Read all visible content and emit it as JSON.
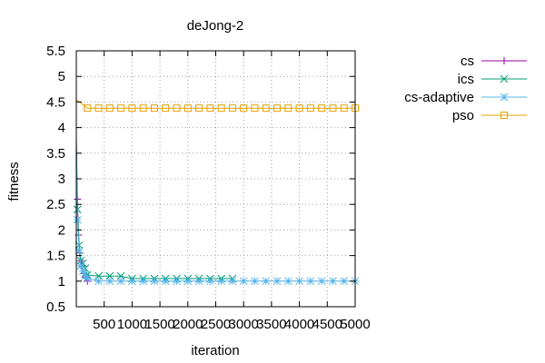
{
  "chart_data": {
    "type": "line",
    "title": "deJong-2",
    "xlabel": "iteration",
    "ylabel": "fitness",
    "xlim": [
      0,
      5000
    ],
    "ylim": [
      0.5,
      5.5
    ],
    "x_ticks": [
      500,
      1000,
      1500,
      2000,
      2500,
      3000,
      3500,
      4000,
      4500,
      5000
    ],
    "y_ticks": [
      0.5,
      1,
      1.5,
      2,
      2.5,
      3,
      3.5,
      4,
      4.5,
      5,
      5.5
    ],
    "x_tick_labels": [
      "500",
      "1000",
      "1500",
      "2000",
      "2500",
      "3000",
      "3500",
      "4000",
      "4500",
      "5000"
    ],
    "y_tick_labels": [
      "0.5",
      "1",
      "1.5",
      "2",
      "2.5",
      "3",
      "3.5",
      "4",
      "4.5",
      "5",
      "5.5"
    ],
    "grid": true,
    "legend_position": "outside-right-top",
    "series": [
      {
        "name": "cs",
        "color": "#94009e",
        "marker": "plus",
        "x": [
          0,
          20,
          40,
          60,
          80,
          100,
          130,
          160,
          200
        ],
        "y": [
          3.8,
          2.6,
          1.9,
          1.55,
          1.4,
          1.3,
          1.15,
          1.08,
          1.0
        ]
      },
      {
        "name": "ics",
        "color": "#009e73",
        "marker": "x",
        "x": [
          0,
          20,
          50,
          80,
          120,
          160,
          200,
          400,
          600,
          800,
          1000,
          1200,
          1400,
          1600,
          1800,
          2000,
          2200,
          2400,
          2600,
          2800
        ],
        "y": [
          3.7,
          2.4,
          1.7,
          1.4,
          1.35,
          1.25,
          1.12,
          1.1,
          1.1,
          1.1,
          1.05,
          1.05,
          1.05,
          1.05,
          1.05,
          1.05,
          1.05,
          1.05,
          1.05,
          1.05
        ]
      },
      {
        "name": "cs-adaptive",
        "color": "#56b4e9",
        "marker": "star",
        "x": [
          0,
          20,
          50,
          80,
          120,
          160,
          200,
          400,
          600,
          800,
          1000,
          1200,
          1400,
          1600,
          1800,
          2000,
          2200,
          2400,
          2600,
          2800,
          3000,
          3200,
          3400,
          3600,
          3800,
          4000,
          4200,
          4400,
          4600,
          4800,
          5000
        ],
        "y": [
          3.5,
          2.2,
          1.6,
          1.3,
          1.2,
          1.1,
          1.05,
          1.0,
          1.0,
          1.0,
          1.0,
          1.0,
          1.0,
          1.0,
          1.0,
          1.0,
          1.0,
          1.0,
          1.0,
          1.0,
          1.0,
          1.0,
          1.0,
          1.0,
          1.0,
          1.0,
          1.0,
          1.0,
          1.0,
          1.0,
          1.0
        ]
      },
      {
        "name": "pso",
        "color": "#e69f00",
        "marker": "square",
        "x": [
          0,
          200,
          400,
          600,
          800,
          1000,
          1200,
          1400,
          1600,
          1800,
          2000,
          2200,
          2400,
          2600,
          2800,
          3000,
          3200,
          3400,
          3600,
          3800,
          4000,
          4200,
          4400,
          4600,
          4800,
          5000
        ],
        "y": [
          4.55,
          4.38,
          4.38,
          4.38,
          4.38,
          4.38,
          4.38,
          4.38,
          4.38,
          4.38,
          4.38,
          4.38,
          4.38,
          4.38,
          4.38,
          4.38,
          4.38,
          4.38,
          4.38,
          4.38,
          4.38,
          4.38,
          4.38,
          4.38,
          4.38,
          4.38
        ]
      }
    ]
  }
}
